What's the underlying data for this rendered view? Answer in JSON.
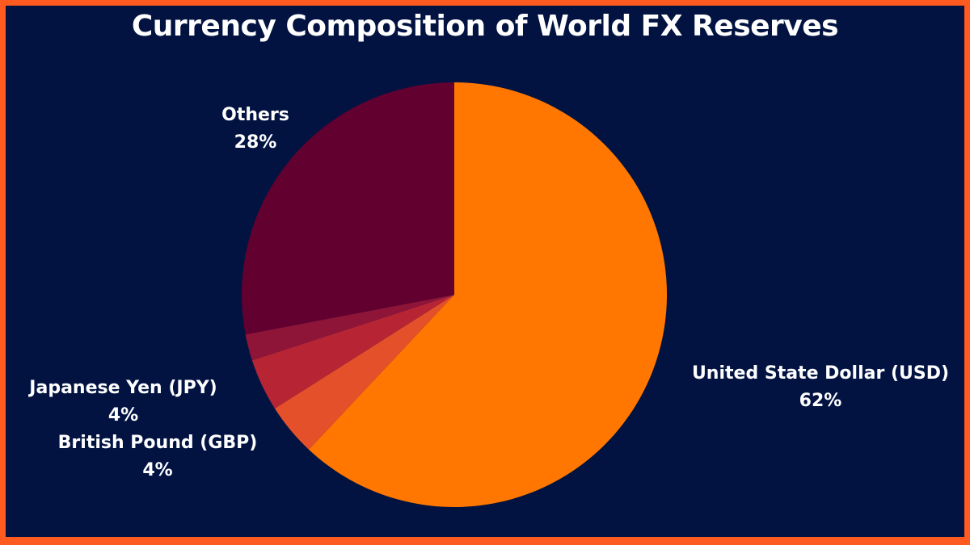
{
  "chart_data": {
    "type": "pie",
    "title": "Currency Composition of World FX Reserves",
    "slices": [
      {
        "label": "United State Dollar (USD)",
        "value": 62,
        "value_label": "62%",
        "color": "#FF7700"
      },
      {
        "label": "British Pound (GBP)",
        "value": 4,
        "value_label": "4%",
        "color": "#E4502A"
      },
      {
        "label": "Japanese Yen (JPY)",
        "value": 4,
        "value_label": "4%",
        "color": "#B72535"
      },
      {
        "label": "",
        "value": 2,
        "value_label": "",
        "color": "#8E1538"
      },
      {
        "label": "Others",
        "value": 28,
        "value_label": "28%",
        "color": "#620030"
      }
    ],
    "start_angle": "top, clockwise"
  },
  "colors": {
    "background": "#021342",
    "border": "#FF5A1F",
    "text": "#FFFFFF"
  }
}
